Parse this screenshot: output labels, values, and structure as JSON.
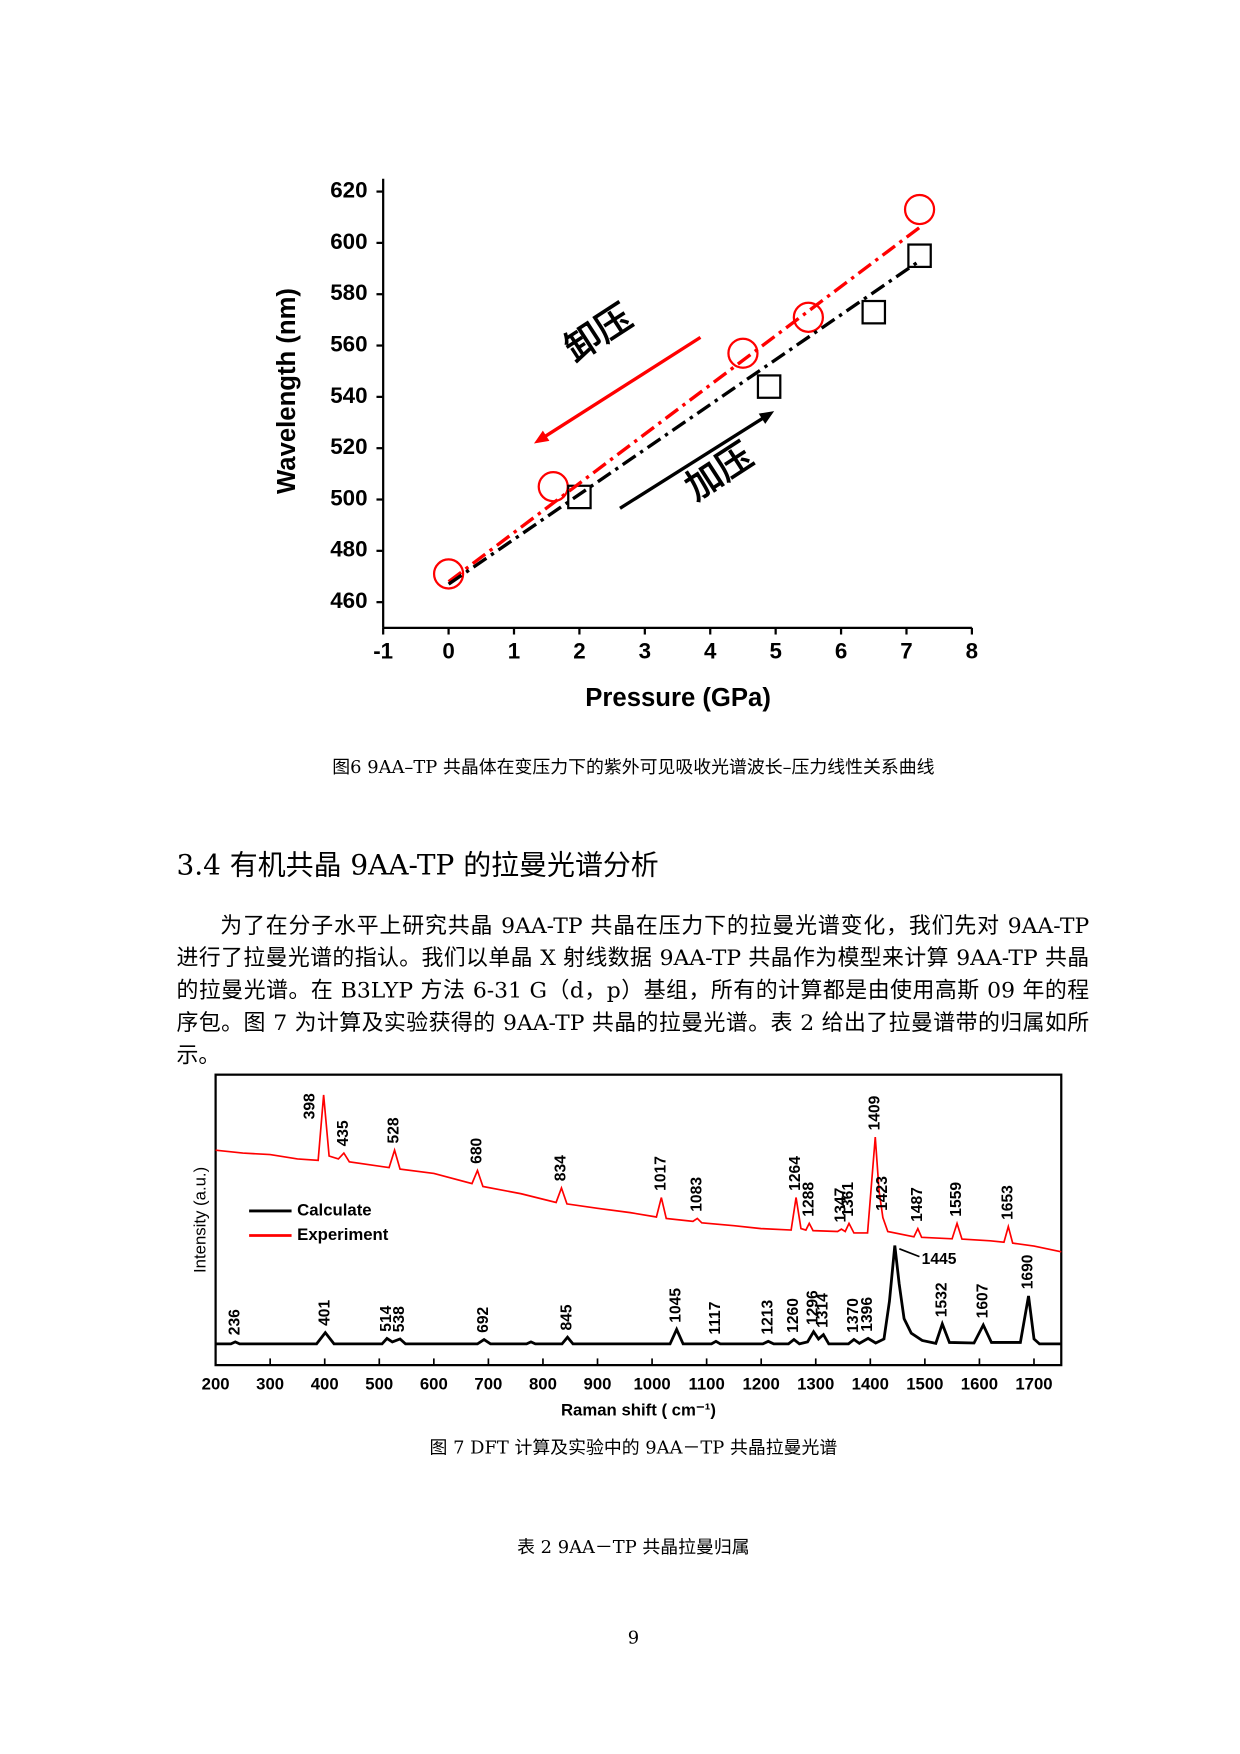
{
  "figure6_caption": "图6 9AA–TP 共晶体在变压力下的紫外可见吸收光谱波长–压力线性关系曲线",
  "section_heading": "3.4 有机共晶 9AA-TP 的拉曼光谱分析",
  "paragraph": "为了在分子水平上研究共晶 9AA-TP 共晶在压力下的拉曼光谱变化，我们先对 9AA-TP 进行了拉曼光谱的指认。我们以单晶 X 射线数据 9AA-TP 共晶作为模型来计算 9AA-TP 共晶的拉曼光谱。在 B3LYP 方法 6-31 G（d，p）基组，所有的计算都是由使用高斯 09 年的程序包。图 7 为计算及实验获得的 9AA-TP 共晶的拉曼光谱。表 2 给出了拉曼谱带的归属如所示。",
  "figure7_caption": "图 7 DFT 计算及实验中的 9AA－TP 共晶拉曼光谱",
  "table2_caption": "表 2 9AA－TP 共晶拉曼归属",
  "page_number": 9,
  "chart_data": [
    {
      "type": "scatter",
      "x_label": "Pressure (GPa)",
      "y_label": "Wavelength (nm)",
      "xlim": [
        -1,
        8
      ],
      "ylim": [
        450,
        625
      ],
      "xticks": [
        -1,
        0,
        1,
        2,
        3,
        4,
        5,
        6,
        7,
        8
      ],
      "yticks": [
        460,
        480,
        500,
        520,
        540,
        560,
        580,
        600,
        620
      ],
      "annotations": [
        "卸压",
        "加压"
      ],
      "series": [
        {
          "color": "#ff0000",
          "marker": "circle",
          "x": [
            0,
            1.6,
            4.5,
            5.5,
            7.2
          ],
          "values": [
            471,
            505,
            557,
            571,
            613
          ]
        },
        {
          "color": "#000000",
          "marker": "square",
          "x": [
            2,
            4.9,
            6.5,
            7.2
          ],
          "values": [
            501,
            544,
            573,
            595
          ]
        },
        {
          "color": "#ff0000",
          "line_style": "dashdot",
          "x": [
            0,
            7.2
          ],
          "values": [
            468,
            606
          ]
        },
        {
          "color": "#000000",
          "line_style": "dashdot",
          "x": [
            0,
            7.2
          ],
          "values": [
            467,
            593
          ]
        }
      ]
    },
    {
      "type": "line",
      "x_label": "Raman shift ( cm⁻¹)",
      "y_label": "Intensity (a.u.)",
      "xlim": [
        200,
        1750
      ],
      "ylim": [
        0,
        100
      ],
      "xticks": [
        200,
        300,
        400,
        500,
        600,
        700,
        800,
        900,
        1000,
        1100,
        1200,
        1300,
        1400,
        1500,
        1600,
        1700
      ],
      "legend": "center left",
      "series": [
        {
          "name": "Calculate",
          "color": "#000000",
          "x": [
            200,
            228,
            236,
            244,
            385,
            401,
            417,
            505,
            514,
            524,
            538,
            548,
            680,
            692,
            704,
            770,
            778,
            786,
            835,
            845,
            855,
            1033,
            1045,
            1057,
            1109,
            1117,
            1125,
            1203,
            1213,
            1223,
            1250,
            1260,
            1270,
            1285,
            1296,
            1305,
            1314,
            1324,
            1360,
            1370,
            1380,
            1396,
            1410,
            1425,
            1435,
            1445,
            1453,
            1462,
            1475,
            1495,
            1520,
            1532,
            1545,
            1590,
            1607,
            1622,
            1675,
            1690,
            1700,
            1710,
            1750
          ],
          "values": [
            7.3,
            7.3,
            8.0,
            7.3,
            7.3,
            11.2,
            7.3,
            7.3,
            9.2,
            8.0,
            9.0,
            7.3,
            7.3,
            8.8,
            7.3,
            7.3,
            8.0,
            7.3,
            7.3,
            9.6,
            7.3,
            7.3,
            12.3,
            7.3,
            7.3,
            8.2,
            7.3,
            7.3,
            8.2,
            7.3,
            7.3,
            8.8,
            7.3,
            8.0,
            11.5,
            9.0,
            10.5,
            7.3,
            7.3,
            8.8,
            7.5,
            9.2,
            7.6,
            9,
            22,
            41.2,
            28,
            16,
            11,
            8.5,
            7.5,
            14.2,
            7.8,
            7.6,
            13.8,
            7.8,
            7.8,
            23.8,
            9,
            7.3,
            7.3
          ],
          "peaks": [
            236,
            401,
            514,
            538,
            692,
            845,
            1045,
            1117,
            1213,
            1260,
            1296,
            1314,
            1370,
            1396,
            1445,
            1532,
            1607,
            1690
          ]
        },
        {
          "name": "Experiment",
          "color": "#ff0000",
          "x": [
            200,
            250,
            300,
            350,
            388,
            398,
            408,
            425,
            435,
            445,
            518,
            528,
            538,
            600,
            670,
            680,
            690,
            760,
            824,
            834,
            844,
            900,
            960,
            1008,
            1017,
            1026,
            1075,
            1083,
            1091,
            1150,
            1200,
            1255,
            1264,
            1273,
            1282,
            1288,
            1295,
            1340,
            1347,
            1354,
            1361,
            1370,
            1395,
            1409,
            1416,
            1423,
            1432,
            1480,
            1487,
            1494,
            1550,
            1559,
            1568,
            1620,
            1645,
            1653,
            1661,
            1700,
            1750
          ],
          "values": [
            74,
            73,
            72.5,
            71,
            70.5,
            93,
            72,
            71,
            73,
            70,
            68,
            74,
            67.5,
            66,
            62.5,
            67,
            61.5,
            59,
            56,
            61,
            55.5,
            54,
            52.5,
            51,
            57.7,
            50.5,
            49.5,
            50.5,
            49,
            48,
            47,
            46.5,
            57.7,
            47,
            46.5,
            48.8,
            46.3,
            46,
            46.8,
            46,
            48.8,
            45.5,
            45.5,
            78.5,
            60,
            50.8,
            46,
            44.2,
            47,
            44,
            43.5,
            48.8,
            43.4,
            42.8,
            42.3,
            47.7,
            42,
            41,
            39
          ],
          "peaks": [
            398,
            435,
            528,
            680,
            834,
            1017,
            1083,
            1264,
            1288,
            1347,
            1361,
            1409,
            1423,
            1487,
            1559,
            1653
          ]
        }
      ]
    }
  ]
}
